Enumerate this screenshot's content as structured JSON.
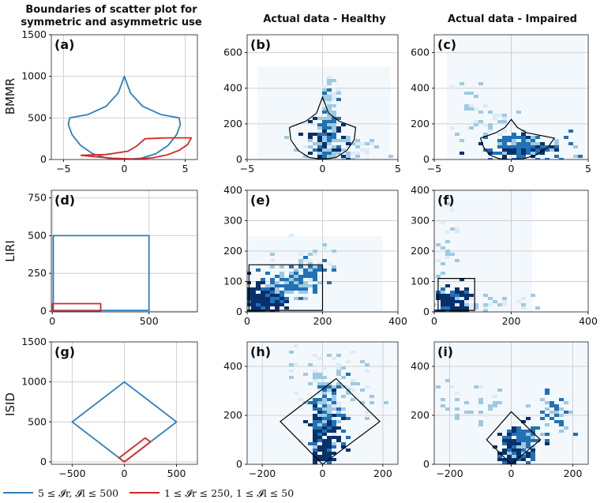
{
  "columns": [
    {
      "title_lines": [
        "Boundaries of scatter plot for",
        "symmetric and asymmetric use"
      ]
    },
    {
      "title_lines": [
        "Actual data - Healthy"
      ]
    },
    {
      "title_lines": [
        "Actual data - Impaired"
      ]
    }
  ],
  "row_labels": [
    "BMMR",
    "LIRI",
    "ISID"
  ],
  "legend": [
    {
      "label": "5 ≤ 𝓘r, 𝓘l ≤ 500",
      "color": "#2e7ebb"
    },
    {
      "label": "1 ≤ 𝓘r ≤ 250, 1 ≤ 𝓘l ≤ 50",
      "color": "#d62728"
    }
  ],
  "colors": {
    "blue": "#2e7ebb",
    "red": "#d62728",
    "dark": "#08306b",
    "mid": "#2171b5",
    "light": "#9ecae1",
    "pale": "#deebf7",
    "grid": "#d0d0d0",
    "boundary": "#000000"
  },
  "chart_data": [
    {
      "id": "a",
      "label": "(a)",
      "type": "line",
      "row": 0,
      "col": 0,
      "xlim": [
        -6,
        6
      ],
      "ylim": [
        0,
        1500
      ],
      "xticks": [
        -5,
        0,
        5
      ],
      "xtick_labels": [
        "−5",
        "0",
        "5"
      ],
      "yticks": [
        0,
        500,
        1000,
        1500
      ],
      "ytick_labels": [
        "0",
        "500",
        "1000",
        "1500"
      ],
      "series": [
        {
          "name": "symmetric",
          "color": "blue",
          "points": [
            [
              -4.5,
              500
            ],
            [
              -3,
              540
            ],
            [
              -1.5,
              640
            ],
            [
              -0.5,
              800
            ],
            [
              0,
              1000
            ],
            [
              0.5,
              800
            ],
            [
              1.5,
              640
            ],
            [
              3,
              540
            ],
            [
              4.5,
              500
            ],
            [
              4.6,
              420
            ],
            [
              4.3,
              300
            ],
            [
              3.6,
              170
            ],
            [
              2.6,
              70
            ],
            [
              1.4,
              15
            ],
            [
              0,
              0
            ],
            [
              -1.4,
              15
            ],
            [
              -2.6,
              70
            ],
            [
              -3.6,
              170
            ],
            [
              -4.3,
              300
            ],
            [
              -4.6,
              420
            ],
            [
              -4.5,
              500
            ]
          ]
        },
        {
          "name": "asymmetric",
          "color": "red",
          "points": [
            [
              -3.6,
              50
            ],
            [
              -1.5,
              60
            ],
            [
              0.3,
              100
            ],
            [
              1,
              160
            ],
            [
              1.7,
              250
            ],
            [
              3.5,
              260
            ],
            [
              5.5,
              260
            ],
            [
              5.2,
              180
            ],
            [
              4.5,
              110
            ],
            [
              3.5,
              55
            ],
            [
              2.3,
              20
            ],
            [
              1,
              5
            ],
            [
              -1,
              15
            ],
            [
              -2.5,
              35
            ],
            [
              -3.6,
              50
            ]
          ]
        }
      ]
    },
    {
      "id": "b",
      "label": "(b)",
      "type": "heatmap",
      "row": 0,
      "col": 1,
      "xlim": [
        -5,
        5
      ],
      "ylim": [
        0,
        700
      ],
      "xticks": [
        -5,
        0,
        5
      ],
      "xtick_labels": [
        "−5",
        "0",
        "5"
      ],
      "yticks": [
        0,
        200,
        400,
        600
      ],
      "ytick_labels": [
        "0",
        "200",
        "400",
        "600"
      ],
      "background_extent": {
        "x": [
          -4.3,
          4.5
        ],
        "y": [
          0,
          520
        ]
      },
      "boundary": [
        [
          -2.2,
          180
        ],
        [
          -1.1,
          215
        ],
        [
          -0.4,
          260
        ],
        [
          0,
          350
        ],
        [
          0.4,
          260
        ],
        [
          1.1,
          215
        ],
        [
          2.2,
          180
        ],
        [
          2.1,
          110
        ],
        [
          1.6,
          50
        ],
        [
          0.9,
          12
        ],
        [
          0,
          0
        ],
        [
          -0.9,
          12
        ],
        [
          -1.6,
          50
        ],
        [
          -2.1,
          110
        ],
        [
          -2.2,
          180
        ]
      ],
      "clusters": [
        {
          "cx": 0.2,
          "cy": 80,
          "sx": 0.5,
          "sy": 65,
          "n": 160,
          "level": "dark"
        },
        {
          "cx": 0.25,
          "cy": 200,
          "sx": 0.25,
          "sy": 90,
          "n": 90,
          "level": "mid"
        },
        {
          "cx": 0.3,
          "cy": 330,
          "sx": 0.25,
          "sy": 70,
          "n": 35,
          "level": "light"
        },
        {
          "cx": 0.5,
          "cy": 60,
          "sx": 1.6,
          "sy": 50,
          "n": 70,
          "level": "light"
        }
      ]
    },
    {
      "id": "c",
      "label": "(c)",
      "type": "heatmap",
      "row": 0,
      "col": 2,
      "xlim": [
        -5,
        5
      ],
      "ylim": [
        0,
        700
      ],
      "xticks": [
        -5,
        0,
        5
      ],
      "xtick_labels": [
        "−5",
        "0",
        "5"
      ],
      "yticks": [
        0,
        200,
        400,
        600
      ],
      "ytick_labels": [
        "0",
        "200",
        "400",
        "600"
      ],
      "background_extent": {
        "x": [
          -4.2,
          4.8
        ],
        "y": [
          0,
          700
        ]
      },
      "boundary": [
        [
          -2.0,
          120
        ],
        [
          -1.0,
          150
        ],
        [
          -0.4,
          180
        ],
        [
          0,
          225
        ],
        [
          0.4,
          180
        ],
        [
          1.0,
          150
        ],
        [
          2.8,
          120
        ],
        [
          2.4,
          70
        ],
        [
          1.6,
          25
        ],
        [
          0.8,
          5
        ],
        [
          0,
          0
        ],
        [
          -0.8,
          5
        ],
        [
          -1.4,
          25
        ],
        [
          -1.8,
          70
        ],
        [
          -2.0,
          120
        ]
      ],
      "clusters": [
        {
          "cx": 0.4,
          "cy": 65,
          "sx": 0.9,
          "sy": 25,
          "n": 170,
          "level": "dark"
        },
        {
          "cx": 0.8,
          "cy": 90,
          "sx": 1.6,
          "sy": 40,
          "n": 70,
          "level": "mid"
        },
        {
          "cx": -1.5,
          "cy": 200,
          "sx": 1.3,
          "sy": 50,
          "n": 30,
          "level": "light"
        },
        {
          "cx": -3.0,
          "cy": 330,
          "sx": 0.5,
          "sy": 120,
          "n": 12,
          "level": "light"
        }
      ]
    },
    {
      "id": "d",
      "label": "(d)",
      "type": "line",
      "row": 1,
      "col": 0,
      "xlim": [
        -5,
        750
      ],
      "ylim": [
        -5,
        800
      ],
      "xticks": [
        0,
        500
      ],
      "xtick_labels": [
        "0",
        "500"
      ],
      "yticks": [
        0,
        250,
        500,
        750
      ],
      "ytick_labels": [
        "0",
        "250",
        "500",
        "750"
      ],
      "series": [
        {
          "name": "symmetric",
          "color": "blue",
          "points": [
            [
              5,
              5
            ],
            [
              500,
              5
            ],
            [
              500,
              500
            ],
            [
              5,
              500
            ],
            [
              5,
              5
            ]
          ]
        },
        {
          "name": "asymmetric",
          "color": "red",
          "points": [
            [
              1,
              1
            ],
            [
              250,
              1
            ],
            [
              250,
              50
            ],
            [
              1,
              50
            ],
            [
              1,
              1
            ]
          ]
        }
      ]
    },
    {
      "id": "e",
      "label": "(e)",
      "type": "heatmap",
      "row": 1,
      "col": 1,
      "xlim": [
        0,
        400
      ],
      "ylim": [
        0,
        400
      ],
      "xticks": [
        0,
        200,
        400
      ],
      "xtick_labels": [
        "0",
        "200",
        "400"
      ],
      "yticks": [
        0,
        100,
        200,
        300,
        400
      ],
      "ytick_labels": [
        "0",
        "100",
        "200",
        "300",
        "400"
      ],
      "background_extent": {
        "x": [
          0,
          360
        ],
        "y": [
          0,
          250
        ]
      },
      "boundary": [
        [
          5,
          5
        ],
        [
          200,
          5
        ],
        [
          200,
          155
        ],
        [
          5,
          155
        ],
        [
          5,
          5
        ]
      ],
      "clusters": [
        {
          "cx": 40,
          "cy": 40,
          "sx": 25,
          "sy": 25,
          "n": 180,
          "level": "dark"
        },
        {
          "cx": 110,
          "cy": 95,
          "sx": 40,
          "sy": 20,
          "n": 120,
          "level": "mid"
        },
        {
          "cx": 170,
          "cy": 140,
          "sx": 25,
          "sy": 18,
          "n": 60,
          "level": "mid"
        },
        {
          "cx": 160,
          "cy": 190,
          "sx": 40,
          "sy": 30,
          "n": 25,
          "level": "light"
        }
      ]
    },
    {
      "id": "f",
      "label": "(f)",
      "type": "heatmap",
      "row": 1,
      "col": 2,
      "xlim": [
        0,
        400
      ],
      "ylim": [
        0,
        400
      ],
      "xticks": [
        0,
        200,
        400
      ],
      "xtick_labels": [
        "0",
        "200",
        "400"
      ],
      "yticks": [
        0,
        100,
        200,
        300,
        400
      ],
      "ytick_labels": [
        "0",
        "100",
        "200",
        "300",
        "400"
      ],
      "background_extent": {
        "x": [
          0,
          255
        ],
        "y": [
          0,
          400
        ]
      },
      "boundary": [
        [
          10,
          5
        ],
        [
          105,
          5
        ],
        [
          105,
          110
        ],
        [
          10,
          110
        ],
        [
          10,
          5
        ]
      ],
      "clusters": [
        {
          "cx": 45,
          "cy": 40,
          "sx": 20,
          "sy": 20,
          "n": 170,
          "level": "dark"
        },
        {
          "cx": 100,
          "cy": 30,
          "sx": 60,
          "sy": 15,
          "n": 40,
          "level": "light"
        },
        {
          "cx": 30,
          "cy": 200,
          "sx": 12,
          "sy": 80,
          "n": 20,
          "level": "light"
        }
      ]
    },
    {
      "id": "g",
      "label": "(g)",
      "type": "line",
      "row": 2,
      "col": 0,
      "xlim": [
        -700,
        700
      ],
      "ylim": [
        -30,
        1500
      ],
      "xticks": [
        -500,
        0,
        500
      ],
      "xtick_labels": [
        "−500",
        "0",
        "500"
      ],
      "yticks": [
        0,
        500,
        1000,
        1500
      ],
      "ytick_labels": [
        "0",
        "500",
        "1000",
        "1500"
      ],
      "series": [
        {
          "name": "symmetric",
          "color": "blue",
          "points": [
            [
              0,
              0
            ],
            [
              500,
              500
            ],
            [
              0,
              1000
            ],
            [
              -500,
              500
            ],
            [
              0,
              0
            ]
          ]
        },
        {
          "name": "asymmetric",
          "color": "red",
          "points": [
            [
              0,
              0
            ],
            [
              250,
              250
            ],
            [
              200,
              300
            ],
            [
              -50,
              50
            ],
            [
              0,
              0
            ]
          ]
        }
      ]
    },
    {
      "id": "h",
      "label": "(h)",
      "type": "heatmap",
      "row": 2,
      "col": 1,
      "xlim": [
        -250,
        250
      ],
      "ylim": [
        0,
        500
      ],
      "xticks": [
        -200,
        0,
        200
      ],
      "xtick_labels": [
        "−200",
        "0",
        "200"
      ],
      "yticks": [
        0,
        200,
        400
      ],
      "ytick_labels": [
        "0",
        "200",
        "400"
      ],
      "background_extent": {
        "x": [
          -250,
          250
        ],
        "y": [
          0,
          500
        ]
      },
      "boundary": [
        [
          0,
          0
        ],
        [
          190,
          175
        ],
        [
          45,
          350
        ],
        [
          -140,
          175
        ],
        [
          0,
          0
        ]
      ],
      "clusters": [
        {
          "cx": 5,
          "cy": 110,
          "sx": 25,
          "sy": 70,
          "n": 180,
          "level": "dark"
        },
        {
          "cx": 10,
          "cy": 250,
          "sx": 25,
          "sy": 70,
          "n": 90,
          "level": "mid"
        },
        {
          "cx": 30,
          "cy": 300,
          "sx": 70,
          "sy": 80,
          "n": 60,
          "level": "light"
        },
        {
          "cx": 0,
          "cy": 400,
          "sx": 60,
          "sy": 50,
          "n": 25,
          "level": "light"
        }
      ]
    },
    {
      "id": "i",
      "label": "(i)",
      "type": "heatmap",
      "row": 2,
      "col": 2,
      "xlim": [
        -250,
        250
      ],
      "ylim": [
        0,
        500
      ],
      "xticks": [
        -200,
        0,
        200
      ],
      "xtick_labels": [
        "−200",
        "0",
        "200"
      ],
      "yticks": [
        0,
        200,
        400
      ],
      "ytick_labels": [
        "0",
        "200",
        "400"
      ],
      "background_extent": {
        "x": [
          -250,
          250
        ],
        "y": [
          0,
          500
        ]
      },
      "boundary": [
        [
          0,
          0
        ],
        [
          95,
          100
        ],
        [
          0,
          215
        ],
        [
          -80,
          100
        ],
        [
          0,
          0
        ]
      ],
      "clusters": [
        {
          "cx": 10,
          "cy": 60,
          "sx": 25,
          "sy": 40,
          "n": 170,
          "level": "dark"
        },
        {
          "cx": 40,
          "cy": 100,
          "sx": 30,
          "sy": 40,
          "n": 60,
          "level": "mid"
        },
        {
          "cx": 130,
          "cy": 210,
          "sx": 30,
          "sy": 40,
          "n": 35,
          "level": "mid"
        },
        {
          "cx": -130,
          "cy": 250,
          "sx": 60,
          "sy": 40,
          "n": 30,
          "level": "light"
        }
      ]
    }
  ]
}
